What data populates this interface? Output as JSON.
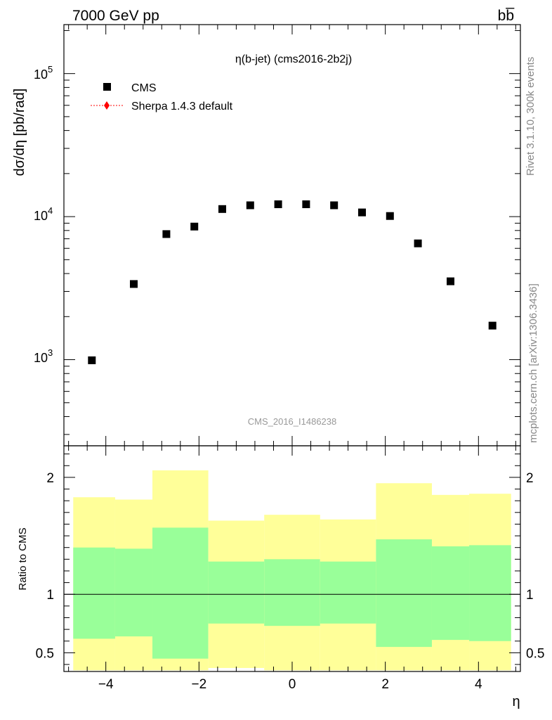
{
  "header": {
    "energy_label": "7000 GeV pp",
    "process_label": "bb̅"
  },
  "side_labels": {
    "rivet": "Rivet 3.1.10,  300k events",
    "source": "mcplots.cern.ch [arXiv:1306.3436]"
  },
  "watermark": "CMS_2016_I1486238",
  "chart_data": [
    {
      "id": "main",
      "type": "scatter",
      "title": "η(b-jet) (cms2016-2b2j)",
      "xlabel": "η",
      "ylabel": "dσ/dη [pb/rad]",
      "xlim": [
        -4.9,
        4.9
      ],
      "ylim": [
        250,
        220000
      ],
      "yscale": "log",
      "ytick_labels": [
        {
          "base": "10",
          "exp": "3",
          "value": 1000
        },
        {
          "base": "10",
          "exp": "4",
          "value": 10000
        },
        {
          "base": "10",
          "exp": "5",
          "value": 100000
        }
      ],
      "legend": [
        {
          "label": "CMS",
          "marker": "square",
          "color": "#000000"
        },
        {
          "label": "Sherpa 1.4.3 default",
          "marker": "diamond",
          "color": "#ff0000",
          "line": "dotted"
        }
      ],
      "series": [
        {
          "name": "CMS",
          "x": [
            -4.3,
            -3.4,
            -2.7,
            -2.1,
            -1.5,
            -0.9,
            -0.3,
            0.3,
            0.9,
            1.5,
            2.1,
            2.7,
            3.4,
            4.3
          ],
          "values": [
            990,
            3380,
            7550,
            8520,
            11300,
            12000,
            12200,
            12200,
            12000,
            10700,
            10100,
            6500,
            3530,
            1730
          ]
        }
      ]
    },
    {
      "id": "ratio",
      "type": "area",
      "ylabel": "Ratio to CMS",
      "xlabel": "η",
      "xlim": [
        -4.9,
        4.9
      ],
      "ylim": [
        0.34,
        2.27
      ],
      "xtick_labels": [
        "−4",
        "−2",
        "0",
        "2",
        "4"
      ],
      "xtick_values": [
        -4,
        -2,
        0,
        2,
        4
      ],
      "ytick_labels": [
        "0.5",
        "1",
        "2"
      ],
      "ytick_values": [
        0.5,
        1,
        2
      ],
      "reference_line": 1,
      "bins": [
        {
          "lo": -4.7,
          "hi": -3.8,
          "green": [
            0.62,
            1.4
          ],
          "yellow": [
            0.35,
            1.83
          ]
        },
        {
          "lo": -3.8,
          "hi": -3.0,
          "green": [
            0.64,
            1.39
          ],
          "yellow": [
            0.35,
            1.81
          ]
        },
        {
          "lo": -3.0,
          "hi": -1.8,
          "green": [
            0.45,
            1.57
          ],
          "yellow": [
            0.35,
            2.06
          ]
        },
        {
          "lo": -1.8,
          "hi": -0.6,
          "green": [
            0.75,
            1.28
          ],
          "yellow": [
            0.37,
            1.63
          ]
        },
        {
          "lo": -0.6,
          "hi": 0.6,
          "green": [
            0.73,
            1.3
          ],
          "yellow": [
            0.35,
            1.68
          ]
        },
        {
          "lo": 0.6,
          "hi": 1.8,
          "green": [
            0.75,
            1.28
          ],
          "yellow": [
            0.35,
            1.64
          ]
        },
        {
          "lo": 1.8,
          "hi": 3.0,
          "green": [
            0.55,
            1.47
          ],
          "yellow": [
            0.35,
            1.95
          ]
        },
        {
          "lo": 3.0,
          "hi": 3.8,
          "green": [
            0.61,
            1.41
          ],
          "yellow": [
            0.35,
            1.85
          ]
        },
        {
          "lo": 3.8,
          "hi": 4.7,
          "green": [
            0.6,
            1.42
          ],
          "yellow": [
            0.35,
            1.86
          ]
        }
      ],
      "colors": {
        "green": "#99ff99",
        "yellow": "#ffff99"
      }
    }
  ]
}
